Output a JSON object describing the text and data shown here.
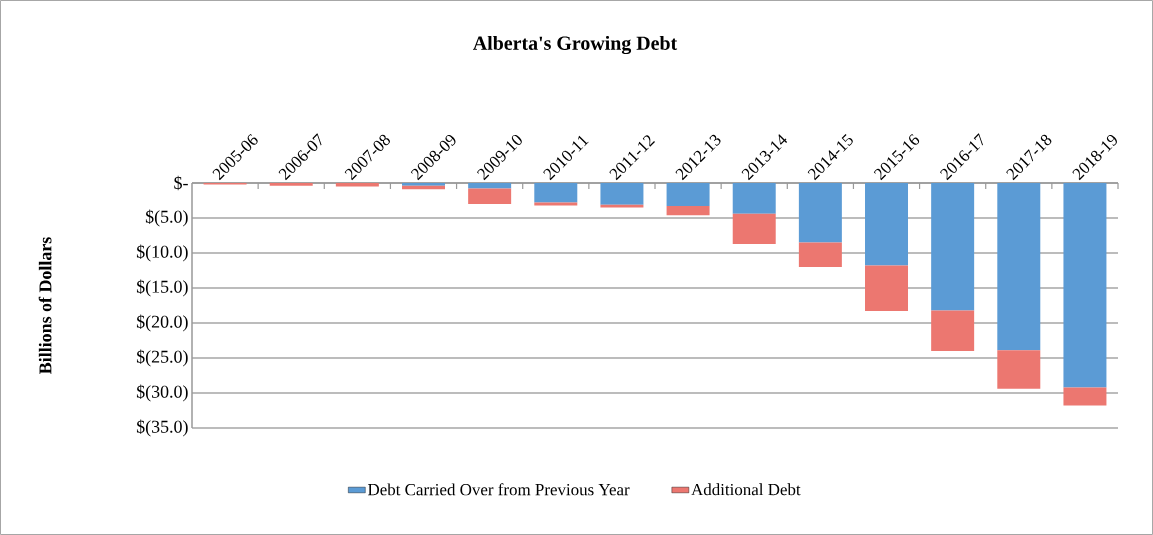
{
  "chart_data": {
    "type": "bar",
    "title": "Alberta's Growing Debt",
    "ylabel": "Billions of Dollars",
    "categories": [
      "2005-06",
      "2006-07",
      "2007-08",
      "2008-09",
      "2009-10",
      "2010-11",
      "2011-12",
      "2012-13",
      "2013-14",
      "2014-15",
      "2015-16",
      "2016-17",
      "2017-18",
      "2018-19"
    ],
    "stacked": true,
    "series": [
      {
        "name": "Debt Carried Over from Previous Year",
        "color": "#5b9bd5",
        "values": [
          null,
          null,
          null,
          -0.4,
          -0.8,
          -2.8,
          -3.1,
          -3.3,
          -4.4,
          -8.5,
          -11.8,
          -18.2,
          -23.9,
          -29.2
        ]
      },
      {
        "name": "Additional Debt",
        "color": "#ec7770",
        "values": [
          -0.2,
          -0.4,
          -0.5,
          -0.5,
          -2.2,
          -0.4,
          -0.4,
          -1.3,
          -4.3,
          -3.5,
          -6.5,
          -5.8,
          -5.5,
          -2.6
        ]
      }
    ],
    "ylim": [
      -35,
      0
    ],
    "yticks": [
      {
        "value": 0,
        "label": "$-"
      },
      {
        "value": -5,
        "label": "$(5.0)"
      },
      {
        "value": -10,
        "label": "$(10.0)"
      },
      {
        "value": -15,
        "label": "$(15.0)"
      },
      {
        "value": -20,
        "label": "$(20.0)"
      },
      {
        "value": -25,
        "label": "$(25.0)"
      },
      {
        "value": -30,
        "label": "$(30.0)"
      },
      {
        "value": -35,
        "label": "$(35.0)"
      }
    ],
    "grid": "y",
    "legend": "bottom"
  }
}
